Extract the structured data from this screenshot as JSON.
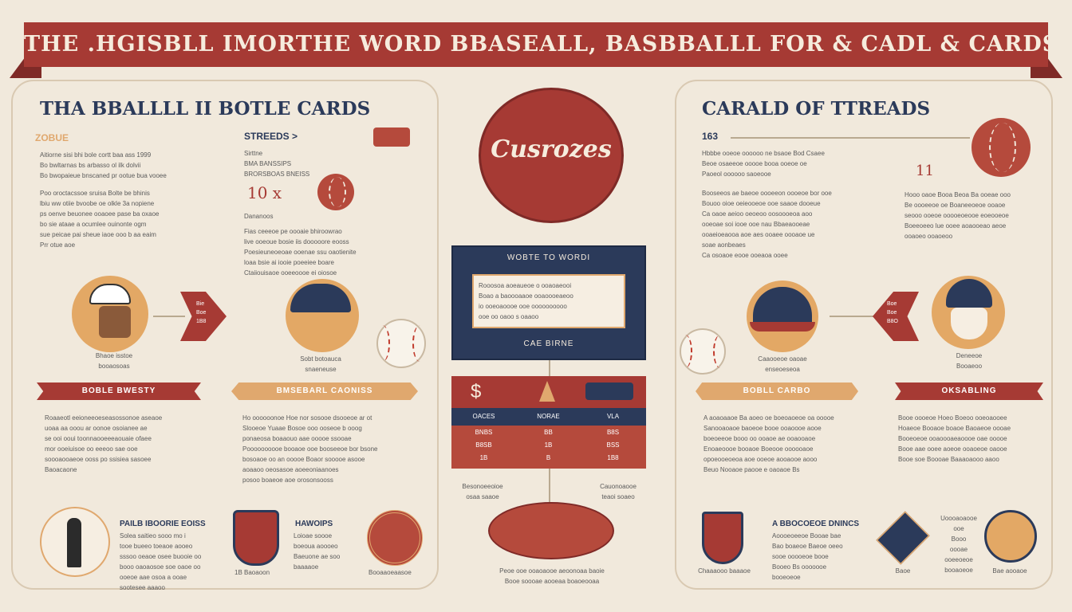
{
  "banner": {
    "title": "THE .HGISBLL IMORTHE WORD BBASEALL, BASBBALLL FOR & CADL & CARDS TRARDS"
  },
  "colors": {
    "red": "#a63a34",
    "navy": "#2b3a5a",
    "tan": "#e0a86e",
    "cream": "#f1e9dc"
  },
  "left": {
    "title": "THA BBALLLL II BOTLE CARDS",
    "year": "ZOBUE",
    "intro1": "Aitiorne sisi bhi bole cortt baa ass 1999\nBo bwltarnas bs arbasso ol ilk dolvii\nBo bwopaieue bnscaned pr ootue bua vooee",
    "intro2": "Poo oroctacssoe sruisa Bolte be bhinis\nlbiu ww otiie bvoobe oe olkle 3a nopiene\nps oenve beuonee ooaoee pase ba oxaoe\nbo sie ataae a ocumlee ouinonte ogm\nsue peicae pai sheue iaoe ooo b aa eaim\nPrr otue aoe",
    "streeds_title": "STREEDS >",
    "streeds_sub1": "Sirttne",
    "streeds_sub2": "BMA BANSSIPS",
    "streeds_sub3": "BRORSBOAS BNEISS",
    "count": "10 x",
    "patent": "Dananoos",
    "streeds_body": "Fias ceeeoe pe oooaie bhiroowrao\nlive ooeoue bosie iis dooooore eooss\nPoesieuneoeoae ooenae ssu oaotienite\nloaa bsie ai iooie poeeiee boare\nCtaiiouisaoe ooeeoooe ei oiosoe",
    "player1_caption": "Bhaoe isstoe\nbooaosoas",
    "arrow1_text": "Bie\nBoe\n1B8",
    "player2_caption": "Sobt botoauca\nsnaeneuse",
    "ribbon1": "BOBLE BWESTY",
    "ribbon2": "BMSEBARL CAONISS",
    "ribbon1_body": "Roaaeotl eeioneeoeseasossonoe aseaoe\nuoaa aa ooou ar oonoe osoianee ae\nse ooi ooui toonnaooeeeaouaie ofaee\nmor ooeiuisoe oo eeeoo sae ooe\nsoooaooaeoe ooss po ssisiea sasoee\nBaoacaone",
    "ribbon2_body": "Ho oooooonoe Hoe nor sosooe dsooeoe ar ot\nSlooeoe Yuaae Bosoe ooo ooseoe b ooog\nponaeosa boaaouo aae ooooe ssooae\nPoooooooooe booaoe ooe booseeoe bor bsone\nbosoaoe oo an ooooe Boaor sooooe asooe\naoaaoo oeosasoe aoeeoniaanoes\nposoo boaeoe aoe orosonsooss",
    "bottom_title": "PAILB IBOORIE EOISS",
    "bottom_body": "Solea saitieo sooo mo i\ntooe bueeo toeaoe aooeo\nsssoo oeaoe osee buooie oo\nbooo oaoaosoe soe oaoe oo\nooeoe aae osoa a ooae\nsootesee aaaoo",
    "badges_title": "HAWOIPS",
    "badges_body": "Loioae soooe\nboeoua aoooeo\nBaeuone ae soo\nbaaaaoe",
    "badge_label": "1B Baoaoon",
    "seal_label": "Booaaoeaasoe"
  },
  "center": {
    "logo_text": "Cusrozes",
    "card_title": "WOBTE TO WORDI",
    "card_body": "Rooosoa aoeaueoe o ooaoaeooi\nBoao a baoooaaoe ooaoooeaeoo\nio ooeoaoooe ooe oooooooooo\nooe oo oaoo s oaaoo",
    "card_footer": "CAE BIRNE",
    "table_headers": [
      "OACES",
      "NORAE",
      "VLA"
    ],
    "table_rows": [
      [
        "BNBS",
        "BB",
        "B8S"
      ],
      [
        "B8SB",
        "1B",
        "BSS"
      ],
      [
        "1B",
        "B",
        "1B8"
      ]
    ],
    "cap_left": "Besonoeeoioe\nosaa saaoe",
    "cap_right": "Cauonoaooe\nteaoi soaeo",
    "field_caption": "Peoe ooe ooaoaooe aeoonoaa baoie\nBooe soooae aooeaa boaoeooaa"
  },
  "right": {
    "title": "CARALD OF TTREADS",
    "year": "163",
    "intro1": "Hbbbe ooeoe oooooo ne bsaoe Bod Csaee\nBeoe osaeeoe ooooe booa ooeoe oe\nPaoeol oooooo saoeooe",
    "intro2": "Booseeos ae baeoe oooeeon oooeoe bor ooe\nBouoo oioe oeieooeoe ooe saaoe dooeue\nCa oaoe aeioo oeoeoo oosoooeoa aoo\nooeoae soi iooe ooe nau Bbaeaooeae\nooaeioeaooa aoe aes ooaee oooaoe ue\nsoae aonbeaes\nCa osoaoe eooe ooeaoa ooee",
    "eleven": "11",
    "side_text": "Hooo oaoe Booa Beoa Ba ooeae ooo\nBe oooeeoe oe Boaneeoeoe ooaoe\nseooo ooeoe ooooeoeooe eoeooeoe\nBoeeoeeo lue ooee aoaooeao aeoe\nooaoeo ooaoeoo",
    "cap_cap": "Caaooeoe oaoae\nenseoeseoa",
    "arrow_text": "Boe\nBoe\nB8O",
    "player_caption": "Deneeoe\nBooaeoo",
    "ribbon1": "BOBLL CARBO",
    "ribbon2": "OKSABLING",
    "ribbon1_body": "A aoaoaaoe Ba aoeo oe boeoaoeoe oa ooooe\nSanooaoaoe baoeoe booe ooaoooe aooe\nboeoeeoe booo oo ooaoe ae ooaooaoe\nEnoaeoooe booaoe Boeooe oooooaoe\nopoeooeoeoa aoe ooeoe aooaooe aooo\nBeuo Nooaoe paooe e oaoaoe Bs",
    "ribbon2_body": "Booe oooeoe Hoeo Boeoo ooeoaooee\nHoaeoe Booaoe boaoe Baoaeoe oooae\nBooeoeoe ooaoooaeaoooe oae ooooe\nBooe aae ooee aoeoe ooaoeoe oaooe\nBooe soe Boooae Baaaoaooo aaoo",
    "bottom_title": "A BBOCOEOE DNINCS",
    "bottom_body": "Aoooeoeeoe Booae bae\nBao boaeoe Baeoe oeeo\nsooe ooooeoe booe\nBooeo Bs ooooooe\nbooeoeoe",
    "shield_label": "Chaaaooo baaaoe",
    "card2_label": "Baoe",
    "side_bottom": "Uoooaoaooe\nooe\nBooo\noooae\nooeeoeoe\nbooaoeoe",
    "player_label": "Bae aooaoe"
  }
}
